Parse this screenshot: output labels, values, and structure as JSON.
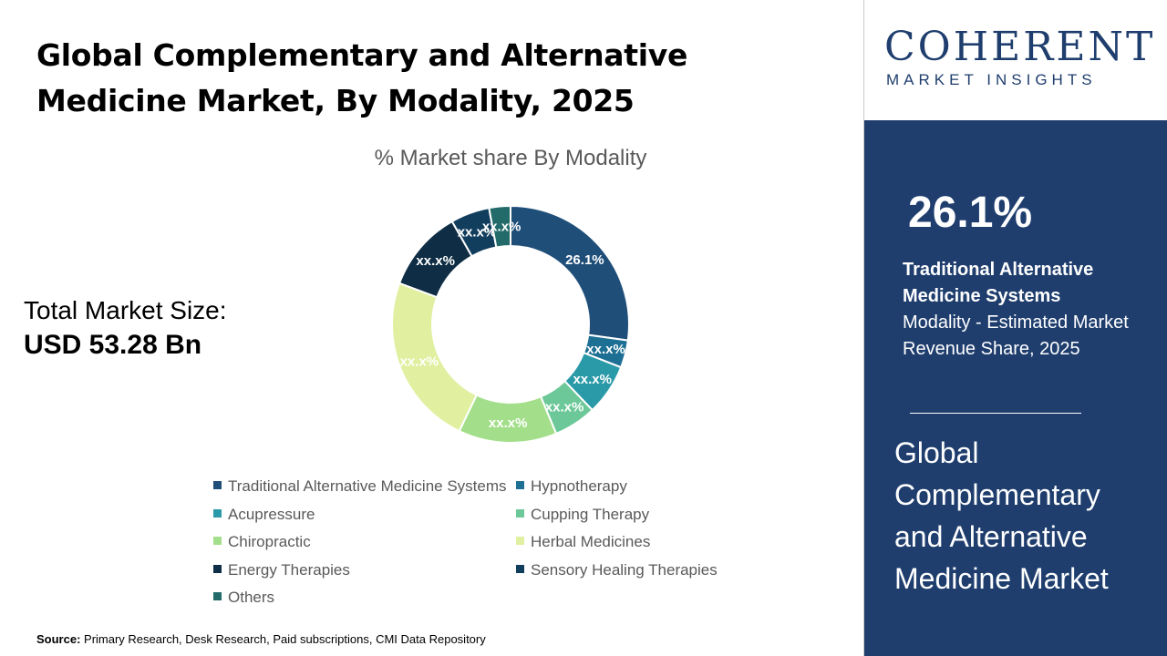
{
  "header": {
    "title": "Global Complementary and Alternative Medicine Market, By Modality, 2025"
  },
  "total_market": {
    "label": "Total Market Size:",
    "value": "USD 53.28 Bn"
  },
  "source": {
    "label": "Source:",
    "text": "Primary Research, Desk Research, Paid subscriptions, CMI Data Repository"
  },
  "logo": {
    "main": "COHERENT",
    "sub": "MARKET INSIGHTS"
  },
  "highlight": {
    "value": "26.1%",
    "name": "Traditional Alternative Medicine Systems",
    "description": "Modality - Estimated Market Revenue Share, 2025",
    "market_name": "Global Complementary and Alternative Medicine Market"
  },
  "chart_data": {
    "type": "pie",
    "title": "% Market share By Modality",
    "donut": true,
    "legend_position": "bottom",
    "slices": [
      {
        "name": "Traditional Alternative Medicine Systems",
        "value": 26.1,
        "label": "26.1%",
        "color": "#1f4e79"
      },
      {
        "name": "Hypnotherapy",
        "value": 3.6,
        "label": "xx.x%",
        "color": "#1e6f94"
      },
      {
        "name": "Acupressure",
        "value": 6.7,
        "label": "xx.x%",
        "color": "#2b9aa8"
      },
      {
        "name": "Cupping Therapy",
        "value": 5.6,
        "label": "xx.x%",
        "color": "#6cc898"
      },
      {
        "name": "Chiropractic",
        "value": 12.9,
        "label": "xx.x%",
        "color": "#a3df8a"
      },
      {
        "name": "Herbal Medicines",
        "value": 22.6,
        "label": "xx.x%",
        "color": "#e0f0a0"
      },
      {
        "name": "Energy Therapies",
        "value": 10.7,
        "label": "xx.x%",
        "color": "#0f2d44"
      },
      {
        "name": "Sensory Healing Therapies",
        "value": 5.1,
        "label": "xx.x%",
        "color": "#123e5e"
      },
      {
        "name": "Others",
        "value": 2.8,
        "label": "xx.x%",
        "color": "#236b6b"
      }
    ]
  }
}
